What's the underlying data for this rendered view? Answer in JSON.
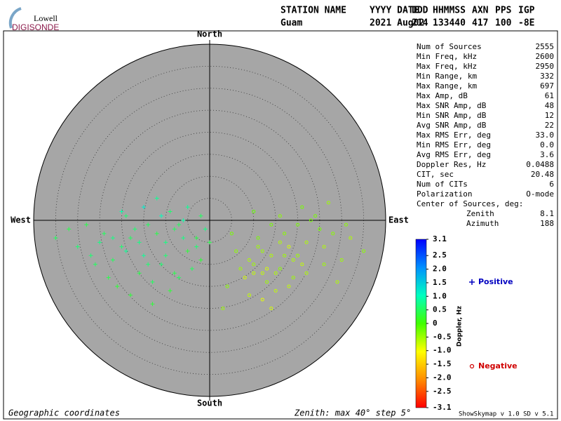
{
  "logo": {
    "top": "Lowell",
    "bottom": "DIGISONDE"
  },
  "header": [
    {
      "label": "STATION NAME",
      "value": "Guam"
    },
    {
      "label": "YYYY DATE",
      "value": "2021 Aug02"
    },
    {
      "label": "DDD",
      "value": "214"
    },
    {
      "label": "HHMMSS",
      "value": "133440"
    },
    {
      "label": "AXN",
      "value": "417"
    },
    {
      "label": "PPS",
      "value": "100"
    },
    {
      "label": "IGP",
      "value": "-8E"
    }
  ],
  "stats": {
    "rows": [
      {
        "label": "Num of Sources",
        "value": "2555"
      },
      {
        "label": "Min Freq, kHz",
        "value": "2600"
      },
      {
        "label": "Max Freq, kHz",
        "value": "2950"
      },
      {
        "label": "Min Range, km",
        "value": "332"
      },
      {
        "label": "Max Range, km",
        "value": "697"
      },
      {
        "label": "Max Amp, dB",
        "value": "61"
      },
      {
        "label": "Max SNR Amp, dB",
        "value": "48"
      },
      {
        "label": "Min SNR Amp, dB",
        "value": "12"
      },
      {
        "label": "Avg SNR Amp, dB",
        "value": "22"
      },
      {
        "label": "Max RMS Err, deg",
        "value": "33.0"
      },
      {
        "label": "Min RMS Err, deg",
        "value": "0.0"
      },
      {
        "label": "Avg RMS Err, deg",
        "value": "3.6"
      },
      {
        "label": "Doppler Res, Hz",
        "value": "0.0488"
      },
      {
        "label": "CIT, sec",
        "value": "20.48"
      },
      {
        "label": "Num of CITs",
        "value": "6"
      },
      {
        "label": "Polarization",
        "value": "O-mode"
      }
    ],
    "center_title": "Center of Sources, deg:",
    "center_rows": [
      {
        "label": "Zenith",
        "value": "8.1"
      },
      {
        "label": "Azimuth",
        "value": "188"
      }
    ]
  },
  "footer": {
    "left": "Geographic coordinates",
    "middle": "Zenith: max 40°  step 5°",
    "right": "ShowSkymap v 1.0  SD v 5.1"
  },
  "chart_data": {
    "type": "scatter",
    "directions": {
      "north": "North",
      "south": "South",
      "east": "East",
      "west": "West"
    },
    "rlim": [
      0,
      40
    ],
    "rticks": [
      5,
      10,
      15,
      20,
      25,
      30,
      35,
      40
    ],
    "clim": [
      -3.1,
      3.1
    ],
    "colormap": [
      "#ff0000",
      "#ff8c00",
      "#ffff00",
      "#40ff00",
      "#00ffc0",
      "#0090ff",
      "#0000ff"
    ],
    "colorbar_label": "Doppler, Hz",
    "cticks": [
      3.1,
      2.5,
      {
        "value": 2,
        "label": "2.0"
      },
      1.5,
      {
        "value": 1,
        "label": "1.0"
      },
      0.5,
      0,
      -0.5,
      {
        "value": -1,
        "label": "-1.0"
      },
      -1.5,
      {
        "value": -2,
        "label": "-2.0"
      },
      -2.5,
      -3.1
    ],
    "series": [
      {
        "name": "Positive",
        "marker": "plus",
        "legend_color": "#0000c0",
        "x": [
          -20,
          -18,
          -15,
          -12,
          -10,
          -8,
          -6,
          -5,
          -14,
          -16,
          -22,
          -25,
          -11,
          -9,
          -7,
          -3,
          -2,
          -13,
          -17,
          -19,
          -24,
          -28,
          -30,
          -21,
          -4,
          -1,
          -10,
          -15,
          -12,
          -8,
          -18,
          -26,
          -6,
          -3,
          -20,
          -23,
          -14,
          -9,
          -11,
          -16,
          -32,
          -35,
          -27,
          -5,
          -2,
          0,
          -13,
          -7,
          -19,
          -22
        ],
        "y": [
          -6,
          -4,
          -8,
          -3,
          -5,
          -2,
          0,
          -7,
          -10,
          -12,
          -9,
          -5,
          1,
          2,
          -1,
          -4,
          -9,
          -14,
          -2,
          -7,
          -3,
          -1,
          -6,
          -15,
          -11,
          -2,
          -8,
          3,
          5,
          -12,
          -17,
          -10,
          -4,
          -6,
          2,
          -13,
          -1,
          -16,
          -10,
          -5,
          -2,
          -4,
          -8,
          3,
          1,
          -5,
          -19,
          -13,
          1,
          -4
        ],
        "doppler": [
          0.6,
          0.5,
          0.8,
          0.4,
          0.7,
          0.5,
          0.9,
          0.3,
          0.6,
          0.4,
          0.5,
          0.7,
          1.0,
          0.6,
          0.5,
          0.4,
          0.3,
          0.5,
          0.6,
          0.8,
          0.5,
          0.4,
          0.6,
          0.3,
          0.5,
          0.7,
          0.6,
          1.2,
          0.8,
          0.4,
          0.3,
          0.5,
          0.7,
          0.6,
          0.9,
          0.4,
          0.5,
          0.3,
          0.6,
          0.7,
          0.4,
          0.5,
          0.6,
          0.8,
          0.5,
          0.4,
          0.3,
          0.5,
          0.6,
          0.7
        ]
      },
      {
        "name": "Negative",
        "marker": "circle",
        "legend_color": "#d00000",
        "x": [
          10,
          12,
          14,
          16,
          18,
          13,
          11,
          9,
          15,
          17,
          20,
          22,
          25,
          8,
          6,
          19,
          21,
          23,
          26,
          28,
          30,
          12,
          14,
          10,
          16,
          7,
          4,
          24,
          27,
          32,
          35,
          18,
          13,
          11,
          15,
          20,
          9,
          17,
          22,
          31,
          3,
          5,
          14,
          19,
          12,
          16,
          10,
          26,
          29,
          21
        ],
        "y": [
          -10,
          -12,
          -8,
          -11,
          -6,
          -14,
          -4,
          -9,
          -16,
          -3,
          -8,
          -5,
          -2,
          -13,
          -7,
          -13,
          -10,
          0,
          -6,
          -3,
          -9,
          -18,
          -1,
          2,
          -5,
          -11,
          -15,
          1,
          4,
          -4,
          -7,
          -15,
          -11,
          -6,
          -12,
          -1,
          -17,
          -8,
          -12,
          -1,
          -20,
          -3,
          -20,
          -9,
          -7,
          1,
          -12,
          -10,
          -14,
          3
        ],
        "doppler": [
          -0.5,
          -0.7,
          -0.6,
          -0.4,
          -0.8,
          -0.5,
          -0.3,
          -0.6,
          -0.7,
          -0.4,
          -0.5,
          -0.6,
          -0.3,
          -0.8,
          -0.4,
          -0.5,
          -0.7,
          -0.3,
          -0.6,
          -0.4,
          -0.5,
          -0.9,
          -0.3,
          -0.2,
          -0.6,
          -0.5,
          -0.4,
          -0.3,
          -0.5,
          -0.6,
          -0.4,
          -0.7,
          -0.8,
          -0.5,
          -0.6,
          -0.3,
          -0.7,
          -0.5,
          -0.6,
          -0.4,
          -0.5,
          -0.3,
          -0.8,
          -0.6,
          -0.5,
          -0.4,
          -0.7,
          -0.5,
          -0.6,
          -0.3
        ]
      }
    ]
  }
}
